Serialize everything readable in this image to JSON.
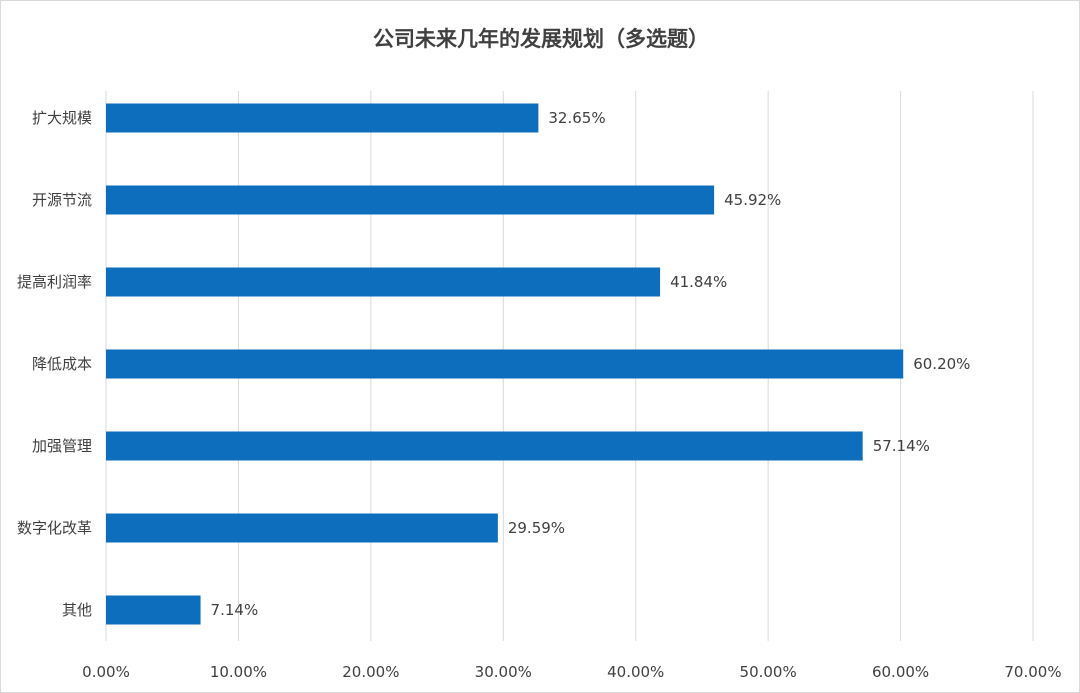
{
  "chart_data": {
    "type": "bar",
    "orientation": "horizontal",
    "title": "公司未来几年的发展规划（多选题）",
    "xlabel": "",
    "ylabel": "",
    "categories": [
      "扩大规模",
      "开源节流",
      "提高利润率",
      "降低成本",
      "加强管理",
      "数字化改革",
      "其他"
    ],
    "values": [
      32.65,
      45.92,
      41.84,
      60.2,
      57.14,
      29.59,
      7.14
    ],
    "value_labels": [
      "32.65%",
      "45.92%",
      "41.84%",
      "60.20%",
      "57.14%",
      "29.59%",
      "7.14%"
    ],
    "xlim": [
      0,
      70
    ],
    "x_ticks": [
      0,
      10,
      20,
      30,
      40,
      50,
      60,
      70
    ],
    "x_tick_labels": [
      "0.00%",
      "10.00%",
      "20.00%",
      "30.00%",
      "40.00%",
      "50.00%",
      "60.00%",
      "70.00%"
    ],
    "grid": "vertical",
    "legend": "none",
    "bar_color": "#0E6EBE"
  }
}
